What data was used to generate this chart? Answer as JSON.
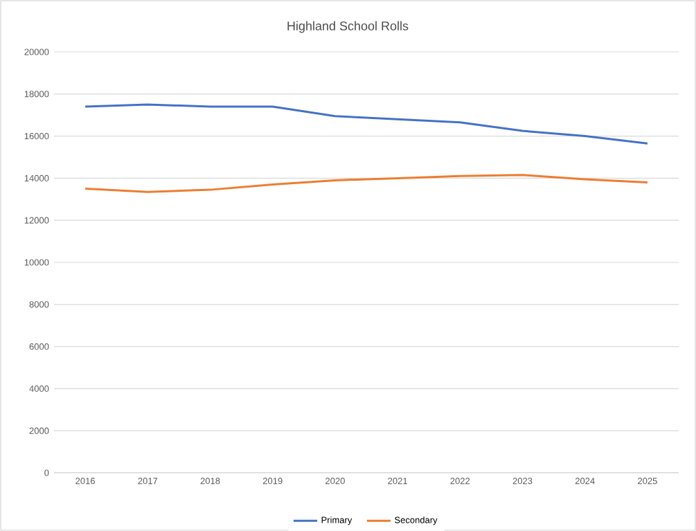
{
  "chart_data": {
    "type": "line",
    "title": "Highland School Rolls",
    "categories": [
      "2016",
      "2017",
      "2018",
      "2019",
      "2020",
      "2021",
      "2022",
      "2023",
      "2024",
      "2025"
    ],
    "series": [
      {
        "name": "Primary",
        "color": "#4472c4",
        "values": [
          17400,
          17500,
          17400,
          17400,
          16950,
          16800,
          16650,
          16250,
          16000,
          15650
        ]
      },
      {
        "name": "Secondary",
        "color": "#ed7d31",
        "values": [
          13500,
          13350,
          13450,
          13700,
          13900,
          14000,
          14100,
          14150,
          13950,
          13800
        ]
      }
    ],
    "ylim": [
      0,
      20000
    ],
    "yticks": [
      0,
      2000,
      4000,
      6000,
      8000,
      10000,
      12000,
      14000,
      16000,
      18000,
      20000
    ],
    "grid": "y",
    "legend": "bottom",
    "marker": "none",
    "line_style": "solid"
  }
}
